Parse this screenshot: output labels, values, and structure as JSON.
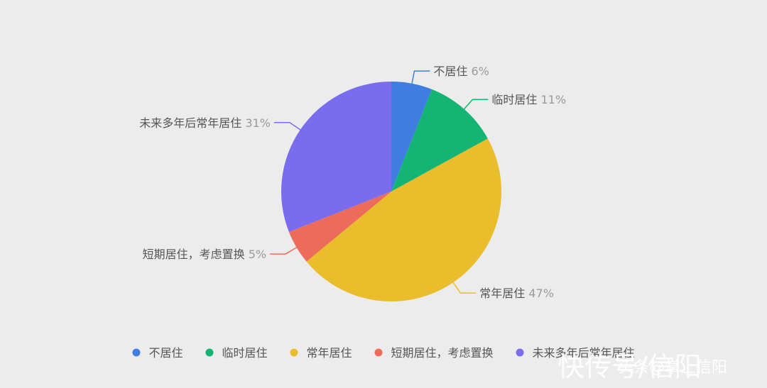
{
  "chart_data": {
    "type": "pie",
    "categories": [
      "不居住",
      "临时居住",
      "常年居住",
      "短期居住，考虑置换",
      "未来多年后常年居住"
    ],
    "values": [
      6,
      11,
      47,
      5,
      31
    ],
    "value_format": "%",
    "colors": [
      "#3f7de0",
      "#14b474",
      "#eabd2c",
      "#ec6b5a",
      "#7a6ded"
    ],
    "legend_position": "bottom",
    "labels_visible": true
  },
  "watermark": {
    "big": "快传号/信阳",
    "small": "头条@掌上信阳"
  }
}
